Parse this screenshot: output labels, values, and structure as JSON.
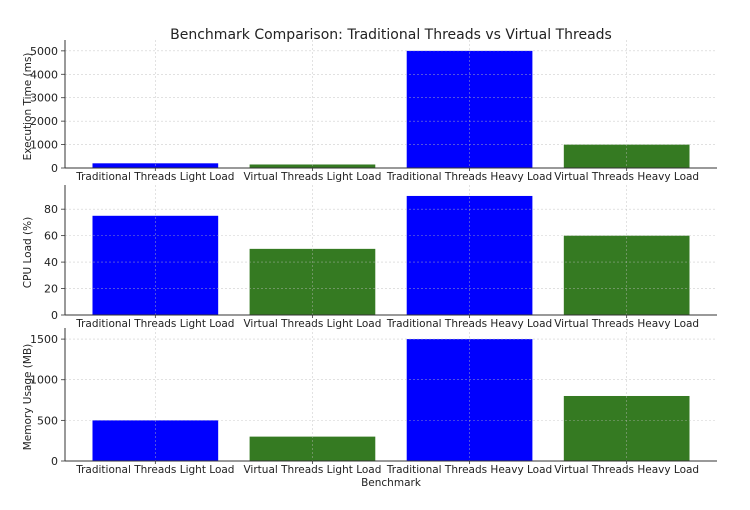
{
  "chart_data": [
    {
      "type": "bar",
      "title": "Benchmark Comparison: Traditional Threads vs Virtual Threads",
      "categories": [
        "Traditional Threads Light Load",
        "Virtual Threads Light Load",
        "Traditional Threads Heavy Load",
        "Virtual Threads Heavy Load"
      ],
      "values": [
        200,
        150,
        5000,
        1000
      ],
      "colors": [
        "#0000ff",
        "#357a22",
        "#0000ff",
        "#357a22"
      ],
      "xlabel": "",
      "ylabel": "Execution Time (ms)",
      "ylim": [
        0,
        5250
      ],
      "yticks": [
        0,
        1000,
        2000,
        3000,
        4000,
        5000
      ],
      "grid": true
    },
    {
      "type": "bar",
      "categories": [
        "Traditional Threads Light Load",
        "Virtual Threads Light Load",
        "Traditional Threads Heavy Load",
        "Virtual Threads Heavy Load"
      ],
      "values": [
        75,
        50,
        90,
        60
      ],
      "colors": [
        "#0000ff",
        "#357a22",
        "#0000ff",
        "#357a22"
      ],
      "xlabel": "",
      "ylabel": "CPU Load (%)",
      "ylim": [
        0,
        94.5
      ],
      "yticks": [
        0,
        20,
        40,
        60,
        80
      ],
      "grid": true
    },
    {
      "type": "bar",
      "categories": [
        "Traditional Threads Light Load",
        "Virtual Threads Light Load",
        "Traditional Threads Heavy Load",
        "Virtual Threads Heavy Load"
      ],
      "values": [
        500,
        300,
        1500,
        800
      ],
      "colors": [
        "#0000ff",
        "#357a22",
        "#0000ff",
        "#357a22"
      ],
      "xlabel": "Benchmark",
      "ylabel": "Memory Usage (MB)",
      "ylim": [
        0,
        1575
      ],
      "yticks": [
        0,
        500,
        1000,
        1500
      ],
      "grid": true
    }
  ]
}
